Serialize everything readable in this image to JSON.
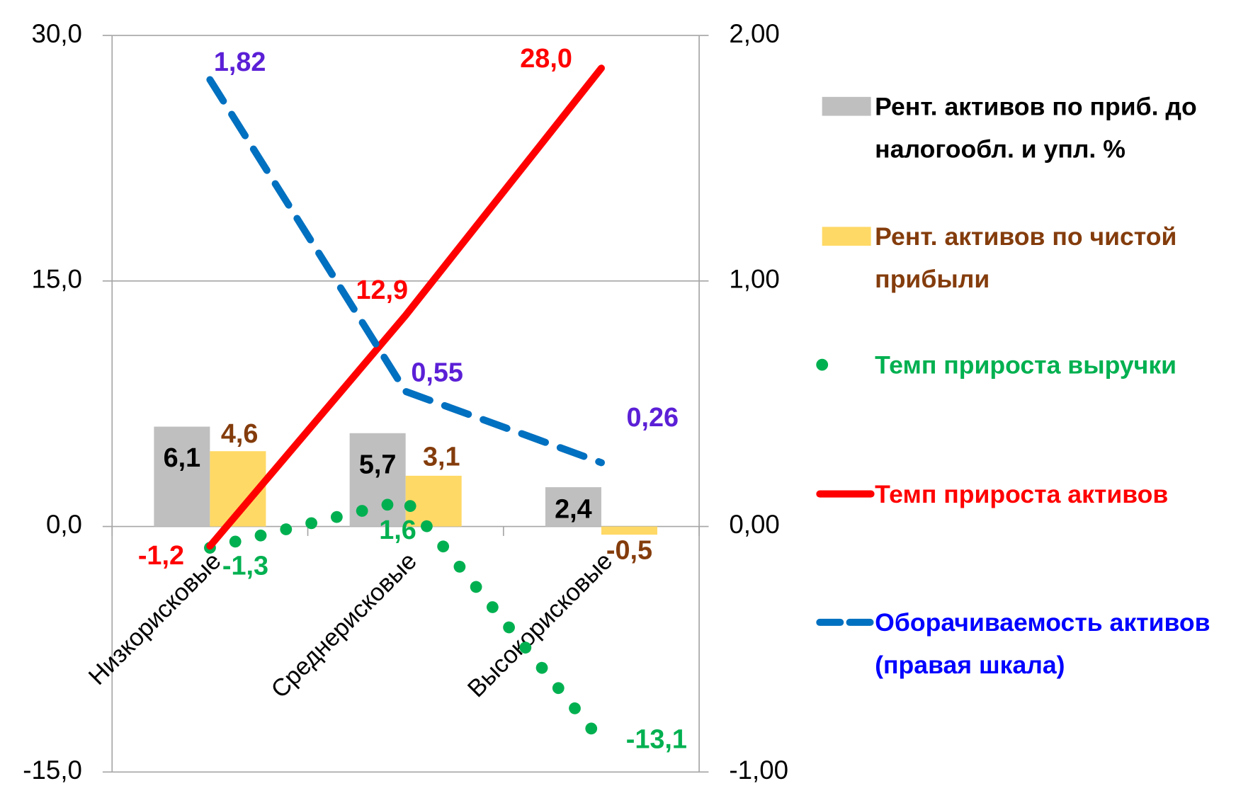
{
  "chart_data": {
    "type": "combo",
    "categories": [
      "Низкорисковые",
      "Среднерисковые",
      "Высокорисковые"
    ],
    "series": [
      {
        "name": "Рент. активов по приб. до налогообл. и упл. %",
        "type": "bar",
        "color": "#bfbfbf",
        "values": [
          6.1,
          5.7,
          2.4
        ],
        "value_labels": [
          "6,1",
          "5,7",
          "2,4"
        ]
      },
      {
        "name": "Рент. активов по чистой прибыли",
        "type": "bar",
        "color": "#ffd966",
        "values": [
          4.6,
          3.1,
          -0.5
        ],
        "value_labels": [
          "4,6",
          "3,1",
          "-0,5"
        ]
      },
      {
        "name": "Темп прироста выручки",
        "type": "line",
        "style": "dotted",
        "color": "#00b050",
        "values": [
          -1.3,
          1.6,
          -13.1
        ],
        "value_labels": [
          "-1,3",
          "1,6",
          "-13,1"
        ]
      },
      {
        "name": "Темп прироста активов",
        "type": "line",
        "style": "solid",
        "color": "#ff0000",
        "values": [
          -1.2,
          12.9,
          28.0
        ],
        "value_labels": [
          "-1,2",
          "12,9",
          "28,0"
        ]
      },
      {
        "name": "Оборачиваемость активов (правая шкала)",
        "type": "line",
        "style": "dashed",
        "color": "#0070c0",
        "axis": "y2",
        "values": [
          1.82,
          0.55,
          0.26
        ],
        "value_labels": [
          "1,82",
          "0,55",
          "0,26"
        ]
      }
    ],
    "ylim": [
      -15,
      30
    ],
    "yticks": [
      {
        "value": -15,
        "label": "-15,0"
      },
      {
        "value": 0,
        "label": "0,0"
      },
      {
        "value": 15,
        "label": "15,0"
      },
      {
        "value": 30,
        "label": "30,0"
      }
    ],
    "y2lim": [
      -1,
      2
    ],
    "y2ticks": [
      {
        "value": -1,
        "label": "-1,00"
      },
      {
        "value": 0,
        "label": "0,00"
      },
      {
        "value": 1,
        "label": "1,00"
      },
      {
        "value": 2,
        "label": "2,00"
      }
    ],
    "grid": true,
    "legend": "right"
  }
}
